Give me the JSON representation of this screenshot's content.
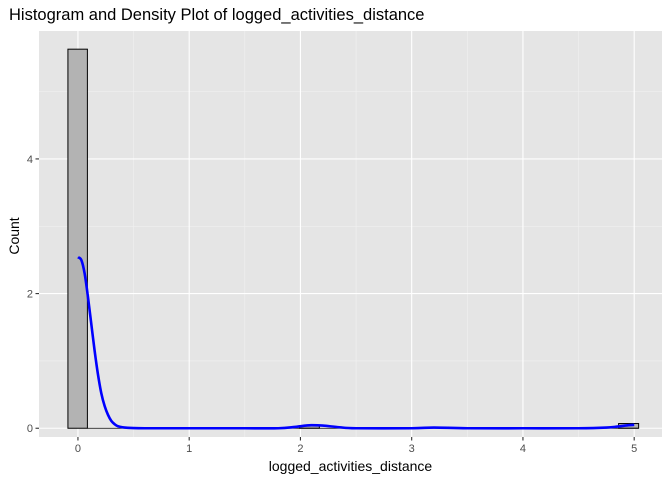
{
  "chart_data": {
    "type": "bar",
    "title": "Histogram and Density Plot of logged_activities_distance",
    "xlabel": "logged_activities_distance",
    "ylabel": "Count",
    "xlim": [
      -0.35,
      5.25
    ],
    "ylim": [
      -0.13,
      5.9
    ],
    "x_ticks": [
      0,
      1,
      2,
      3,
      4,
      5
    ],
    "y_ticks": [
      0,
      2,
      4
    ],
    "grid": true,
    "background": "#e5e5e5",
    "histogram": {
      "fill": "#b3b3b3",
      "stroke": "#000000",
      "bins": [
        {
          "x0": -0.09,
          "x1": 0.085,
          "count": 5.63
        },
        {
          "x0": 1.99,
          "x1": 2.17,
          "count": 0.04
        },
        {
          "x0": 4.86,
          "x1": 5.04,
          "count": 0.07
        }
      ]
    },
    "density": {
      "color": "#0000ff",
      "x": [
        0.0,
        0.03,
        0.06,
        0.09,
        0.12,
        0.15,
        0.18,
        0.21,
        0.24,
        0.27,
        0.3,
        0.33,
        0.36,
        0.4,
        0.45,
        0.5,
        0.6,
        0.8,
        1.0,
        1.5,
        1.8,
        1.95,
        2.05,
        2.1,
        2.2,
        2.35,
        2.5,
        3.0,
        3.2,
        3.5,
        4.0,
        4.5,
        4.75,
        4.85,
        4.95,
        5.0
      ],
      "y": [
        2.54,
        2.5,
        2.3,
        1.95,
        1.55,
        1.15,
        0.8,
        0.52,
        0.33,
        0.2,
        0.11,
        0.06,
        0.03,
        0.015,
        0.006,
        0.002,
        0.0,
        0.0,
        0.0,
        0.0,
        0.0,
        0.02,
        0.04,
        0.045,
        0.04,
        0.015,
        0.0,
        0.0,
        0.01,
        0.0,
        0.0,
        0.0,
        0.01,
        0.025,
        0.045,
        0.05
      ]
    }
  }
}
